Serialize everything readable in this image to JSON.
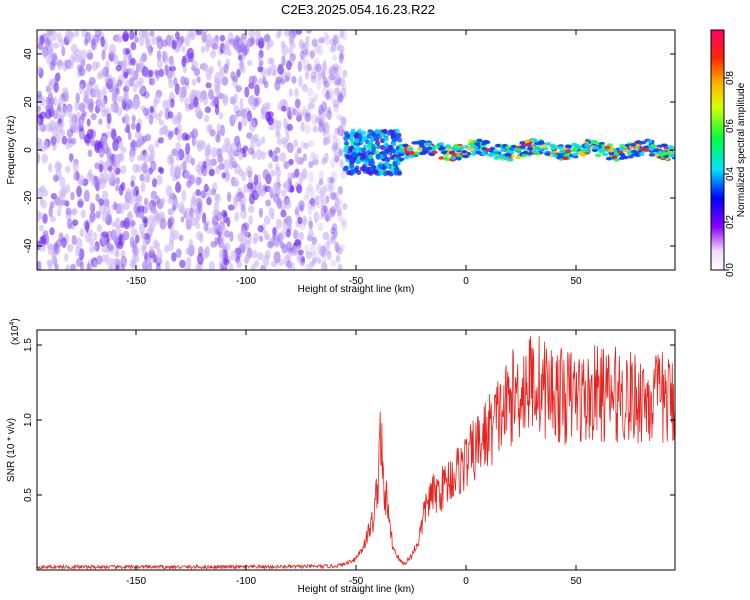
{
  "title": "C2E3.2025.054.16.23.R22",
  "colors": {
    "snr_line": "#e8231e",
    "spectrogram_low": "#7a3ff0",
    "spectrogram_mid": "#00e0ff",
    "spectrogram_high": "#ff1a1a"
  },
  "chart_data": [
    {
      "type": "heatmap",
      "xlabel": "Height of straight line (km)",
      "ylabel": "Frequency (Hz)",
      "xlim": [
        -195,
        95
      ],
      "ylim": [
        -50,
        50
      ],
      "x_ticks": [
        -150,
        -100,
        -50,
        0,
        50
      ],
      "y_ticks": [
        -40,
        -20,
        0,
        20,
        40
      ],
      "colorbar": {
        "label": "Normalized spectral amplitude",
        "range": [
          0,
          1
        ],
        "ticks": [
          "0.0",
          "0.2",
          "0.4",
          "0.6",
          "0.8"
        ],
        "colormap": "rainbow"
      },
      "regions": [
        {
          "x_range": [
            -195,
            -55
          ],
          "freq_range": [
            -50,
            50
          ],
          "level": "noise",
          "amplitude": 0.05
        },
        {
          "x_range": [
            -55,
            -30
          ],
          "freq_range": [
            -10,
            8
          ],
          "level": "transition",
          "amplitude": 0.3
        },
        {
          "x_range": [
            -30,
            95
          ],
          "freq_range": [
            -3,
            3
          ],
          "level": "carrier",
          "amplitude": 0.9
        }
      ]
    },
    {
      "type": "line",
      "xlabel": "Height of straight line (km)",
      "ylabel": "SNR (10 * v/v)",
      "y_scale_label": "(x10",
      "y_scale_exponent": "4",
      "y_scale_suffix": ")",
      "xlim": [
        -195,
        95
      ],
      "ylim": [
        0,
        16000
      ],
      "x_ticks": [
        -150,
        -100,
        -50,
        0,
        50
      ],
      "y_ticks": [
        {
          "value": 5000,
          "label": "0.5"
        },
        {
          "value": 10000,
          "label": "1.0"
        },
        {
          "value": 15000,
          "label": "1.5"
        }
      ],
      "series": [
        {
          "x": [
            -195,
            -150,
            -100,
            -60,
            -55,
            -50,
            -47,
            -44,
            -42,
            -40,
            -39,
            -38,
            -37,
            -36,
            -35,
            -33,
            -30,
            -28,
            -25,
            -22,
            -20,
            -18,
            -15,
            -12,
            -10,
            -8,
            -5,
            -2,
            0,
            3,
            5,
            8,
            10,
            13,
            15,
            18,
            20,
            23,
            25,
            28,
            30,
            33,
            35,
            40,
            45,
            50,
            55,
            60,
            65,
            70,
            75,
            80,
            85,
            90,
            95
          ],
          "y": [
            200,
            200,
            200,
            250,
            400,
            800,
            1500,
            2600,
            3500,
            6000,
            9800,
            7000,
            4000,
            5500,
            3000,
            1500,
            600,
            400,
            900,
            1800,
            3000,
            4500,
            5000,
            5300,
            5600,
            6000,
            6400,
            6900,
            7200,
            7800,
            8200,
            8800,
            9200,
            9800,
            10300,
            10800,
            11400,
            11700,
            12100,
            12300,
            12600,
            12400,
            12200,
            11800,
            11500,
            11700,
            11300,
            11900,
            11500,
            11800,
            11400,
            11600,
            11300,
            11500,
            11000
          ]
        }
      ]
    }
  ]
}
